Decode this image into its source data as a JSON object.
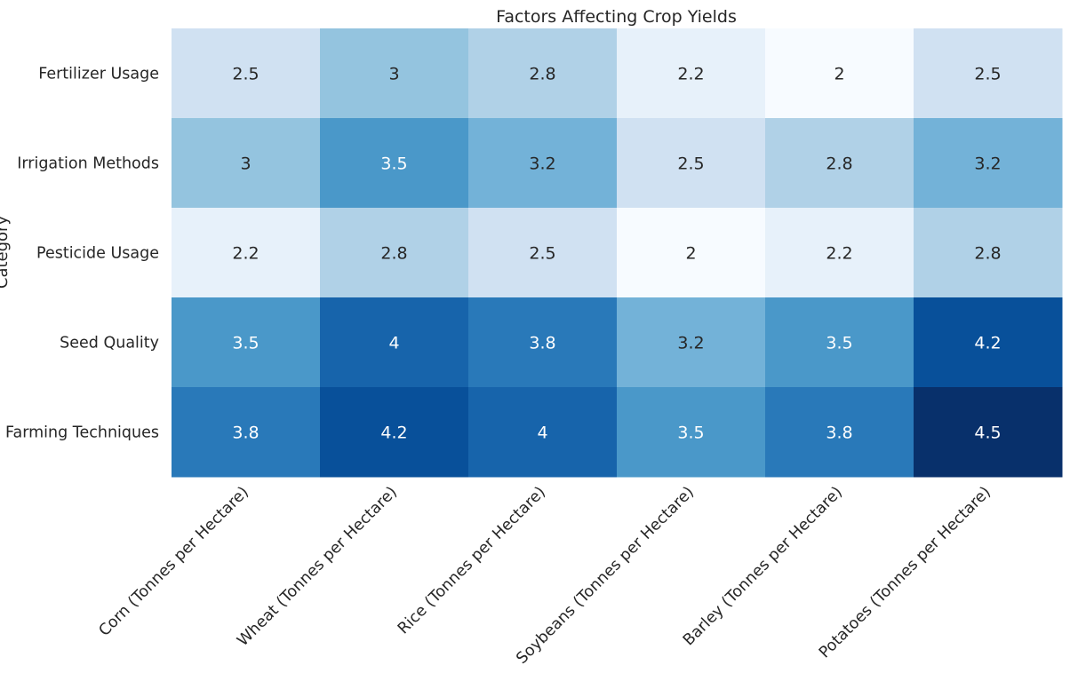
{
  "chart_data": {
    "type": "heatmap",
    "title": "Factors Affecting Crop Yields",
    "ylabel": "Category",
    "xlabel": "",
    "colormap": "Blues",
    "vmin": 2.0,
    "vmax": 4.5,
    "grid": false,
    "colorbar": false,
    "columns": [
      "Corn (Tonnes per Hectare)",
      "Wheat (Tonnes per Hectare)",
      "Rice (Tonnes per Hectare)",
      "Soybeans (Tonnes per Hectare)",
      "Barley (Tonnes per Hectare)",
      "Potatoes (Tonnes per Hectare)"
    ],
    "rows": [
      "Fertilizer Usage",
      "Irrigation Methods",
      "Pesticide Usage",
      "Seed Quality",
      "Farming Techniques"
    ],
    "values": [
      [
        2.5,
        3.0,
        2.8,
        2.2,
        2.0,
        2.5
      ],
      [
        3.0,
        3.5,
        3.2,
        2.5,
        2.8,
        3.2
      ],
      [
        2.2,
        2.8,
        2.5,
        2.0,
        2.2,
        2.8
      ],
      [
        3.5,
        4.0,
        3.8,
        3.2,
        3.5,
        4.2
      ],
      [
        3.8,
        4.2,
        4.0,
        3.5,
        3.8,
        4.5
      ]
    ]
  }
}
